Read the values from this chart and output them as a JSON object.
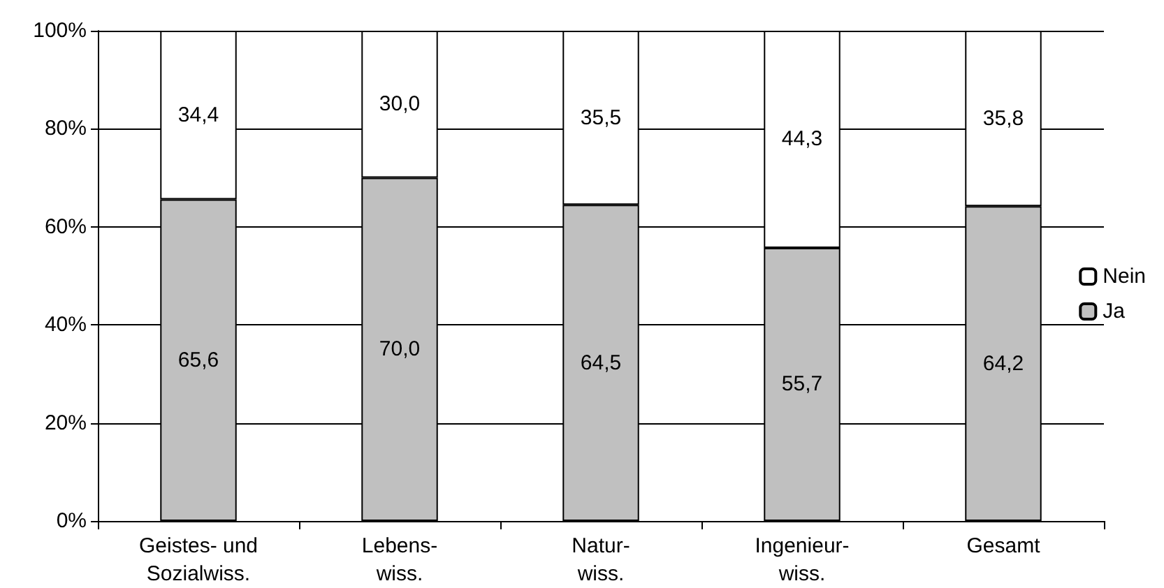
{
  "chart_data": {
    "type": "bar",
    "stacked": true,
    "categories": [
      "Geistes- und\nSozialwiss.",
      "Lebens-\nwiss.",
      "Natur-\nwiss.",
      "Ingenieur-\nwiss.",
      "Gesamt"
    ],
    "series": [
      {
        "name": "Ja",
        "color": "#c0c0c0",
        "values": [
          65.6,
          70.0,
          64.5,
          55.7,
          64.2
        ],
        "value_labels": [
          "65,6",
          "70,0",
          "64,5",
          "55,7",
          "64,2"
        ]
      },
      {
        "name": "Nein",
        "color": "#ffffff",
        "values": [
          34.4,
          30.0,
          35.5,
          44.3,
          35.8
        ],
        "value_labels": [
          "34,4",
          "30,0",
          "35,5",
          "44,3",
          "35,8"
        ]
      }
    ],
    "ylim": [
      0,
      100
    ],
    "yticks": [
      {
        "value": 0,
        "label": "0%"
      },
      {
        "value": 20,
        "label": "20%"
      },
      {
        "value": 40,
        "label": "40%"
      },
      {
        "value": 60,
        "label": "60%"
      },
      {
        "value": 80,
        "label": "80%"
      },
      {
        "value": 100,
        "label": "100%"
      }
    ],
    "grid": "y",
    "legend": "right"
  }
}
